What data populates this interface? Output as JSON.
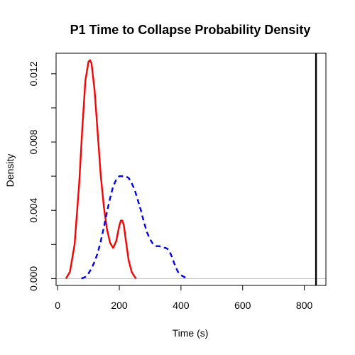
{
  "chart_data": {
    "type": "line",
    "title": "P1 Time to Collapse Probability Density",
    "xlabel": "Time (s)",
    "ylabel": "Density",
    "xlim": [
      -5,
      870
    ],
    "ylim": [
      -0.0004,
      0.0132
    ],
    "xticks": [
      0,
      200,
      400,
      600,
      800
    ],
    "xtick_labels": [
      "0",
      "200",
      "400",
      "600",
      "800"
    ],
    "yticks": [
      0,
      0.002,
      0.004,
      0.006,
      0.008,
      0.01,
      0.012
    ],
    "ytick_labels": [
      "0.000",
      "",
      "0.004",
      "",
      "0.008",
      "",
      "0.012"
    ],
    "grid": false,
    "legend": "none",
    "baseline": {
      "y": 0,
      "color": "#bebebe"
    },
    "vline": {
      "x": 838,
      "color": "#000000"
    },
    "series": [
      {
        "color": "#ff0000",
        "style": "solid",
        "x": [
          27,
          40,
          55,
          70,
          80,
          90,
          100,
          105,
          110,
          120,
          130,
          140,
          150,
          160,
          170,
          180,
          190,
          200,
          205,
          210,
          215,
          220,
          230,
          240,
          250,
          255
        ],
        "y": [
          0.0,
          0.0004,
          0.002,
          0.0056,
          0.0088,
          0.0116,
          0.0127,
          0.0128,
          0.0126,
          0.011,
          0.0085,
          0.006,
          0.0042,
          0.0029,
          0.0021,
          0.0018,
          0.0022,
          0.0031,
          0.0034,
          0.0034,
          0.0031,
          0.0024,
          0.0011,
          0.0004,
          0.0001,
          0.0
        ]
      },
      {
        "color": "#0000ff",
        "style": "dashed",
        "x": [
          77,
          90,
          100,
          110,
          120,
          130,
          140,
          150,
          160,
          170,
          180,
          190,
          200,
          210,
          220,
          230,
          240,
          250,
          260,
          270,
          280,
          290,
          300,
          310,
          320,
          330,
          340,
          350,
          360,
          370,
          380,
          390,
          400,
          410,
          420
        ],
        "y": [
          0.0,
          0.0001,
          0.0003,
          0.0006,
          0.001,
          0.0015,
          0.0022,
          0.003,
          0.0039,
          0.0047,
          0.0054,
          0.0058,
          0.006,
          0.006,
          0.006,
          0.0059,
          0.0056,
          0.0052,
          0.0046,
          0.004,
          0.0033,
          0.0027,
          0.0023,
          0.002,
          0.0019,
          0.0019,
          0.0018,
          0.0018,
          0.0017,
          0.0013,
          0.0008,
          0.0004,
          0.0002,
          0.0001,
          0.0
        ]
      }
    ]
  }
}
